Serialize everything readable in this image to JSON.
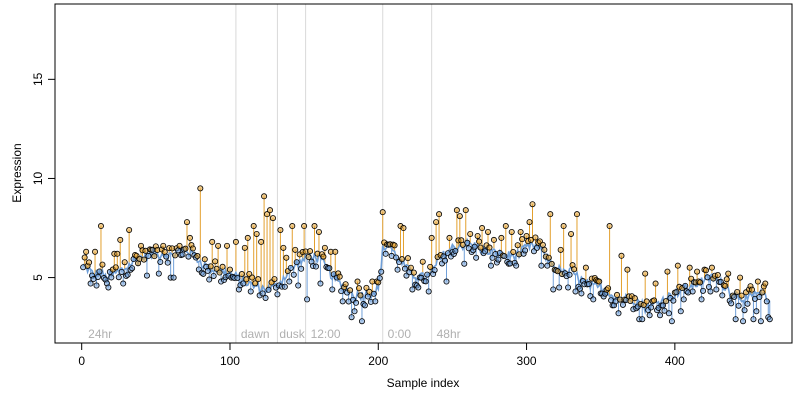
{
  "chart_data": {
    "type": "scatter",
    "xlabel": "Sample index",
    "ylabel": "Expression",
    "xlim": [
      -18,
      479
    ],
    "ylim": [
      1.7,
      18.8
    ],
    "x_ticks": [
      0,
      100,
      200,
      300,
      400
    ],
    "y_ticks": [
      5,
      10,
      15
    ],
    "vlines": [
      104,
      132,
      151,
      203,
      236
    ],
    "annotations": [
      {
        "text": "24hr",
        "x": 3
      },
      {
        "text": "dawn",
        "x": 106
      },
      {
        "text": "dusk",
        "x": 132
      },
      {
        "text": "12:00",
        "x": 153
      },
      {
        "text": "0:00",
        "x": 205
      },
      {
        "text": "48hr",
        "x": 238
      }
    ],
    "colors": {
      "fit_line": "#6f9fd8",
      "residual": "#e3a02e",
      "point_edge": "#000000",
      "vline": "#d9d9d9"
    },
    "n_points": 464,
    "x_start": 1,
    "knots": [
      [
        1,
        5.6
      ],
      [
        5,
        5.4
      ],
      [
        8,
        5.1
      ],
      [
        12,
        5.3
      ],
      [
        16,
        5.0
      ],
      [
        20,
        5.1
      ],
      [
        25,
        5.3
      ],
      [
        30,
        5.5
      ],
      [
        35,
        5.8
      ],
      [
        40,
        6.0
      ],
      [
        45,
        6.1
      ],
      [
        50,
        6.2
      ],
      [
        55,
        6.2
      ],
      [
        60,
        6.1
      ],
      [
        65,
        6.3
      ],
      [
        70,
        6.4
      ],
      [
        75,
        6.2
      ],
      [
        80,
        5.8
      ],
      [
        85,
        5.5
      ],
      [
        90,
        5.4
      ],
      [
        95,
        5.3
      ],
      [
        100,
        5.2
      ],
      [
        105,
        5.0
      ],
      [
        110,
        4.8
      ],
      [
        115,
        4.6
      ],
      [
        120,
        4.5
      ],
      [
        125,
        4.4
      ],
      [
        130,
        4.5
      ],
      [
        135,
        4.9
      ],
      [
        140,
        5.3
      ],
      [
        145,
        5.7
      ],
      [
        150,
        5.9
      ],
      [
        155,
        6.1
      ],
      [
        160,
        6.0
      ],
      [
        165,
        5.5
      ],
      [
        170,
        5.0
      ],
      [
        175,
        4.6
      ],
      [
        180,
        4.3
      ],
      [
        185,
        4.1
      ],
      [
        190,
        4.2
      ],
      [
        195,
        4.2
      ],
      [
        200,
        4.4
      ],
      [
        203,
        6.4
      ],
      [
        207,
        6.7
      ],
      [
        211,
        6.2
      ],
      [
        215,
        5.8
      ],
      [
        220,
        5.4
      ],
      [
        225,
        5.1
      ],
      [
        230,
        5.0
      ],
      [
        235,
        5.1
      ],
      [
        240,
        5.8
      ],
      [
        245,
        6.2
      ],
      [
        250,
        6.5
      ],
      [
        255,
        6.6
      ],
      [
        260,
        6.7
      ],
      [
        265,
        6.6
      ],
      [
        270,
        6.4
      ],
      [
        275,
        6.3
      ],
      [
        280,
        6.2
      ],
      [
        285,
        6.1
      ],
      [
        290,
        6.1
      ],
      [
        295,
        6.2
      ],
      [
        300,
        6.5
      ],
      [
        305,
        6.6
      ],
      [
        310,
        6.4
      ],
      [
        315,
        5.9
      ],
      [
        320,
        5.5
      ],
      [
        325,
        5.2
      ],
      [
        330,
        5.3
      ],
      [
        335,
        5.0
      ],
      [
        340,
        4.7
      ],
      [
        345,
        4.5
      ],
      [
        350,
        4.5
      ],
      [
        355,
        4.3
      ],
      [
        360,
        4.0
      ],
      [
        365,
        3.9
      ],
      [
        370,
        4.0
      ],
      [
        375,
        3.8
      ],
      [
        380,
        3.5
      ],
      [
        385,
        3.6
      ],
      [
        390,
        3.8
      ],
      [
        395,
        4.0
      ],
      [
        400,
        4.2
      ],
      [
        405,
        4.4
      ],
      [
        410,
        4.5
      ],
      [
        415,
        4.7
      ],
      [
        420,
        4.9
      ],
      [
        425,
        5.0
      ],
      [
        430,
        4.8
      ],
      [
        435,
        4.5
      ],
      [
        440,
        4.2
      ],
      [
        445,
        4.0
      ],
      [
        450,
        3.9
      ],
      [
        455,
        4.2
      ],
      [
        460,
        4.1
      ],
      [
        464,
        3.6
      ]
    ],
    "residual_up": [
      [
        3,
        6.3
      ],
      [
        9,
        6.3
      ],
      [
        13,
        7.6
      ],
      [
        22,
        6.2
      ],
      [
        24,
        6.2
      ],
      [
        26,
        6.9
      ],
      [
        32,
        7.4
      ],
      [
        40,
        6.6
      ],
      [
        47,
        6.4
      ],
      [
        55,
        6.6
      ],
      [
        66,
        6.6
      ],
      [
        71,
        7.8
      ],
      [
        73,
        7.0
      ],
      [
        80,
        9.5
      ],
      [
        88,
        6.8
      ],
      [
        92,
        6.6
      ],
      [
        98,
        6.6
      ],
      [
        104,
        6.8
      ],
      [
        110,
        6.5
      ],
      [
        112,
        7.0
      ],
      [
        116,
        7.6
      ],
      [
        118,
        7.2
      ],
      [
        121,
        6.8
      ],
      [
        123,
        9.1
      ],
      [
        125,
        8.2
      ],
      [
        127,
        8.4
      ],
      [
        129,
        8.0
      ],
      [
        134,
        7.4
      ],
      [
        136,
        6.5
      ],
      [
        138,
        6.0
      ],
      [
        142,
        7.6
      ],
      [
        144,
        6.4
      ],
      [
        150,
        7.6
      ],
      [
        157,
        7.6
      ],
      [
        160,
        7.3
      ],
      [
        164,
        6.5
      ],
      [
        168,
        6.3
      ],
      [
        171,
        6.3
      ],
      [
        182,
        5.0
      ],
      [
        186,
        4.8
      ],
      [
        196,
        4.8
      ],
      [
        199,
        4.8
      ],
      [
        203,
        8.3
      ],
      [
        215,
        7.6
      ],
      [
        217,
        7.5
      ],
      [
        230,
        5.8
      ],
      [
        236,
        7.0
      ],
      [
        239,
        7.8
      ],
      [
        241,
        8.2
      ],
      [
        248,
        7.0
      ],
      [
        253,
        8.4
      ],
      [
        255,
        8.1
      ],
      [
        259,
        8.4
      ],
      [
        262,
        7.2
      ],
      [
        267,
        7.1
      ],
      [
        270,
        7.5
      ],
      [
        274,
        7.3
      ],
      [
        278,
        6.9
      ],
      [
        283,
        7.0
      ],
      [
        286,
        7.6
      ],
      [
        290,
        7.3
      ],
      [
        296,
        7.3
      ],
      [
        300,
        7.1
      ],
      [
        302,
        7.8
      ],
      [
        304,
        8.7
      ],
      [
        312,
        6.4
      ],
      [
        314,
        5.6
      ],
      [
        316,
        8.2
      ],
      [
        323,
        6.4
      ],
      [
        325,
        7.6
      ],
      [
        330,
        7.2
      ],
      [
        334,
        8.2
      ],
      [
        340,
        5.5
      ],
      [
        356,
        7.6
      ],
      [
        364,
        6.1
      ],
      [
        368,
        5.4
      ],
      [
        380,
        5.2
      ],
      [
        387,
        4.7
      ],
      [
        395,
        5.3
      ],
      [
        402,
        5.6
      ],
      [
        410,
        5.5
      ],
      [
        415,
        5.3
      ],
      [
        420,
        5.4
      ],
      [
        425,
        5.5
      ],
      [
        436,
        5.2
      ],
      [
        444,
        5.0
      ],
      [
        450,
        4.4
      ],
      [
        456,
        4.8
      ],
      [
        461,
        4.7
      ]
    ],
    "residual_down": [
      [
        6,
        4.7
      ],
      [
        10,
        4.6
      ],
      [
        18,
        4.5
      ],
      [
        28,
        4.7
      ],
      [
        44,
        5.1
      ],
      [
        52,
        5.2
      ],
      [
        60,
        5.0
      ],
      [
        62,
        5.0
      ],
      [
        86,
        4.9
      ],
      [
        94,
        4.8
      ],
      [
        101,
        5.0
      ],
      [
        106,
        4.4
      ],
      [
        114,
        4.3
      ],
      [
        120,
        4.1
      ],
      [
        122,
        4.2
      ],
      [
        133,
        4.6
      ],
      [
        140,
        4.8
      ],
      [
        146,
        4.6
      ],
      [
        152,
        3.9
      ],
      [
        161,
        4.7
      ],
      [
        169,
        4.4
      ],
      [
        176,
        3.8
      ],
      [
        182,
        3.0
      ],
      [
        184,
        3.3
      ],
      [
        189,
        2.8
      ],
      [
        191,
        3.6
      ],
      [
        198,
        3.8
      ],
      [
        205,
        6.2
      ],
      [
        213,
        5.4
      ],
      [
        219,
        5.1
      ],
      [
        223,
        4.4
      ],
      [
        226,
        4.6
      ],
      [
        234,
        4.3
      ],
      [
        246,
        4.8
      ],
      [
        258,
        5.7
      ],
      [
        266,
        6.0
      ],
      [
        276,
        5.6
      ],
      [
        288,
        5.7
      ],
      [
        293,
        5.6
      ],
      [
        310,
        5.6
      ],
      [
        318,
        4.4
      ],
      [
        322,
        4.5
      ],
      [
        328,
        4.5
      ],
      [
        333,
        4.3
      ],
      [
        337,
        4.2
      ],
      [
        345,
        3.9
      ],
      [
        350,
        4.2
      ],
      [
        358,
        3.6
      ],
      [
        362,
        3.2
      ],
      [
        372,
        3.4
      ],
      [
        376,
        2.9
      ],
      [
        378,
        2.9
      ],
      [
        383,
        3.1
      ],
      [
        390,
        3.1
      ],
      [
        396,
        3.2
      ],
      [
        398,
        2.8
      ],
      [
        404,
        3.3
      ],
      [
        406,
        3.9
      ],
      [
        412,
        4.3
      ],
      [
        418,
        3.9
      ],
      [
        424,
        4.3
      ],
      [
        428,
        4.4
      ],
      [
        432,
        4.1
      ],
      [
        438,
        3.7
      ],
      [
        441,
        2.9
      ],
      [
        446,
        2.8
      ],
      [
        453,
        2.9
      ],
      [
        455,
        3.3
      ],
      [
        458,
        2.8
      ],
      [
        462,
        3.8
      ],
      [
        463,
        3.0
      ],
      [
        464,
        2.9
      ]
    ]
  }
}
